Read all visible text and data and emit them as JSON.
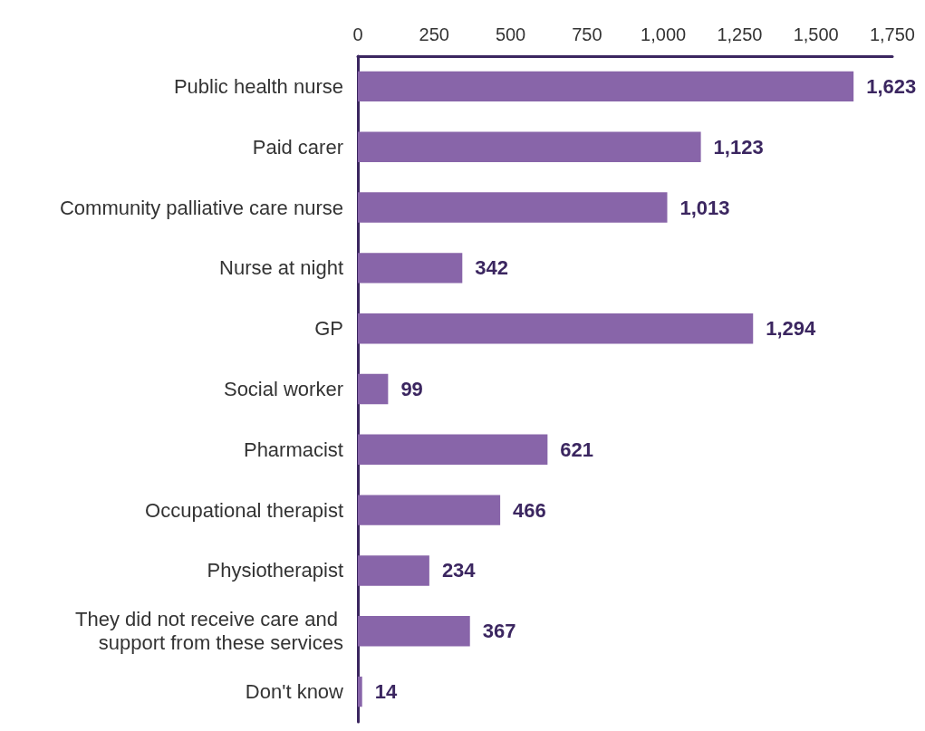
{
  "chart_data": {
    "type": "bar",
    "orientation": "horizontal",
    "categories": [
      "Public health nurse",
      "Paid carer",
      "Community palliative care nurse",
      "Nurse at night",
      "GP",
      "Social worker",
      "Pharmacist",
      "Occupational therapist",
      "Physiotherapist",
      "They did not receive care and support from these services",
      "Don't know"
    ],
    "values": [
      1623,
      1123,
      1013,
      342,
      1294,
      99,
      621,
      466,
      234,
      367,
      14
    ],
    "value_labels": [
      "1,623",
      "1,123",
      "1,013",
      "342",
      "1,294",
      "99",
      "621",
      "466",
      "234",
      "367",
      "14"
    ],
    "color": "#8865a9",
    "xlim": [
      0,
      1750
    ],
    "xticks": [
      0,
      250,
      500,
      750,
      {
        "value": 1000,
        "label": "1,000"
      },
      {
        "value": 1250,
        "label": "1,250"
      },
      {
        "value": 1500,
        "label": "1,500"
      },
      {
        "value": 1750,
        "label": "1,750"
      }
    ],
    "grid": false
  }
}
